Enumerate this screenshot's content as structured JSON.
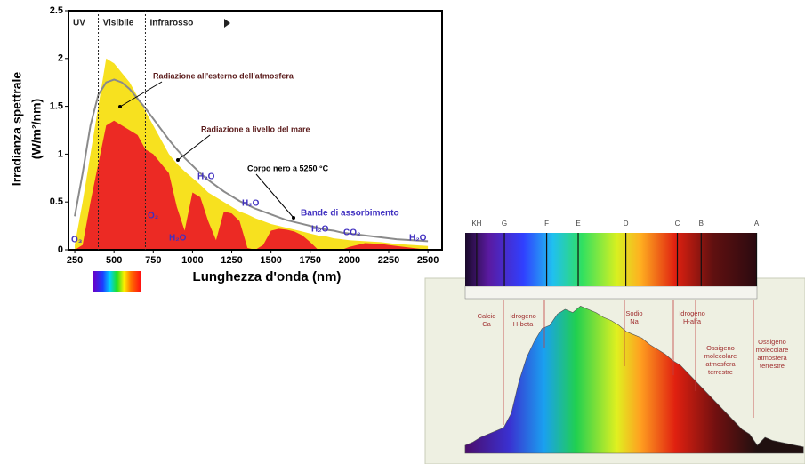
{
  "chart_data": [
    {
      "type": "area",
      "ylabel": [
        "Irradianza spettrale",
        "(W/m²/nm)"
      ],
      "xlabel": "Lunghezza d'onda (nm)",
      "xlim": [
        210,
        2590
      ],
      "ylim": [
        0,
        2.5
      ],
      "xticks": [
        250,
        500,
        750,
        1000,
        1250,
        1500,
        1750,
        2000,
        2250,
        2500
      ],
      "yticks": [
        0,
        0.5,
        1,
        1.5,
        2,
        2.5
      ],
      "regions": [
        {
          "label": "UV",
          "range": [
            210,
            400
          ]
        },
        {
          "label": "Visibile",
          "range": [
            400,
            700
          ]
        },
        {
          "label": "Infrarosso",
          "range": [
            700,
            2590
          ]
        }
      ],
      "x": [
        250,
        300,
        350,
        400,
        450,
        500,
        550,
        600,
        650,
        700,
        750,
        800,
        850,
        900,
        950,
        1000,
        1050,
        1100,
        1150,
        1200,
        1250,
        1300,
        1350,
        1400,
        1450,
        1500,
        1550,
        1600,
        1650,
        1700,
        1750,
        1800,
        1850,
        1900,
        1950,
        2000,
        2100,
        2200,
        2300,
        2400,
        2500
      ],
      "series": [
        {
          "name": "Radiazione all'esterno dell'atmosfera",
          "color": "#f7e11f",
          "style": "area",
          "values": [
            0.05,
            0.5,
            1.0,
            1.5,
            2.0,
            1.95,
            1.85,
            1.75,
            1.6,
            1.45,
            1.3,
            1.15,
            1.0,
            0.9,
            0.82,
            0.75,
            0.68,
            0.6,
            0.55,
            0.5,
            0.45,
            0.4,
            0.37,
            0.33,
            0.3,
            0.27,
            0.25,
            0.23,
            0.21,
            0.19,
            0.17,
            0.15,
            0.14,
            0.12,
            0.11,
            0.1,
            0.09,
            0.08,
            0.06,
            0.05,
            0.04
          ]
        },
        {
          "name": "Radiazione a livello del mare",
          "color": "#ec2a24",
          "style": "area",
          "values": [
            0,
            0.05,
            0.5,
            0.9,
            1.3,
            1.35,
            1.3,
            1.25,
            1.2,
            1.05,
            1.0,
            0.9,
            0.8,
            0.45,
            0.2,
            0.6,
            0.55,
            0.3,
            0.1,
            0.4,
            0.38,
            0.3,
            0.02,
            0,
            0.05,
            0.2,
            0.22,
            0.21,
            0.19,
            0.15,
            0.08,
            0,
            0,
            0,
            0,
            0.03,
            0.07,
            0.06,
            0.04,
            0.02,
            0
          ]
        },
        {
          "name": "Corpo nero a 5250 °C",
          "color": "#8a8a8a",
          "style": "line",
          "values": [
            0.35,
            0.8,
            1.3,
            1.62,
            1.75,
            1.78,
            1.75,
            1.68,
            1.58,
            1.48,
            1.37,
            1.26,
            1.15,
            1.05,
            0.96,
            0.88,
            0.8,
            0.73,
            0.67,
            0.61,
            0.56,
            0.51,
            0.47,
            0.43,
            0.4,
            0.37,
            0.34,
            0.31,
            0.29,
            0.27,
            0.25,
            0.23,
            0.21,
            0.2,
            0.18,
            0.17,
            0.15,
            0.13,
            0.11,
            0.1,
            0.09
          ]
        }
      ],
      "annotation": "Bande di assorbimento",
      "absorption_labels": [
        "O₃",
        "O₂",
        "H₂O",
        "H₂O",
        "H₂O",
        "H₂O",
        "CO₂",
        "H₂O"
      ]
    },
    {
      "type": "area",
      "xlim": [
        328,
        822
      ],
      "ylim": [
        0,
        1
      ],
      "x": [
        380,
        390,
        400,
        410,
        420,
        430,
        440,
        450,
        460,
        470,
        480,
        490,
        500,
        510,
        520,
        530,
        540,
        550,
        560,
        570,
        580,
        590,
        600,
        610,
        620,
        630,
        640,
        650,
        660,
        670,
        680,
        690,
        700,
        710,
        720,
        730,
        740,
        750,
        760,
        770,
        780,
        790,
        800,
        810,
        820
      ],
      "values": [
        0.05,
        0.07,
        0.1,
        0.12,
        0.14,
        0.16,
        0.25,
        0.45,
        0.6,
        0.7,
        0.78,
        0.8,
        0.87,
        0.9,
        0.88,
        0.92,
        0.9,
        0.88,
        0.85,
        0.83,
        0.8,
        0.76,
        0.74,
        0.72,
        0.68,
        0.65,
        0.62,
        0.58,
        0.55,
        0.5,
        0.45,
        0.4,
        0.35,
        0.3,
        0.25,
        0.2,
        0.15,
        0.12,
        0.05,
        0.1,
        0.08,
        0.07,
        0.06,
        0.05,
        0.04
      ],
      "lines": [
        {
          "label": "KH",
          "x": 395
        },
        {
          "label": "G",
          "x": 431
        },
        {
          "label": "F",
          "x": 486
        },
        {
          "label": "E",
          "x": 527
        },
        {
          "label": "D",
          "x": 589
        },
        {
          "label": "C",
          "x": 656
        },
        {
          "label": "B",
          "x": 687
        },
        {
          "label": "A",
          "x": 759
        }
      ],
      "annotations": [
        [
          "Calcio",
          "Ca"
        ],
        [
          "Idrogeno",
          "H-beta"
        ],
        [
          "Sodio",
          "Na"
        ],
        [
          "Idrogeno",
          "H-alfa"
        ],
        [
          "Ossigeno",
          "molecolare",
          "atmosfera",
          "terrestre"
        ],
        [
          "Ossigeno",
          "molecolare",
          "atmosfera",
          "terrestre"
        ]
      ]
    }
  ]
}
